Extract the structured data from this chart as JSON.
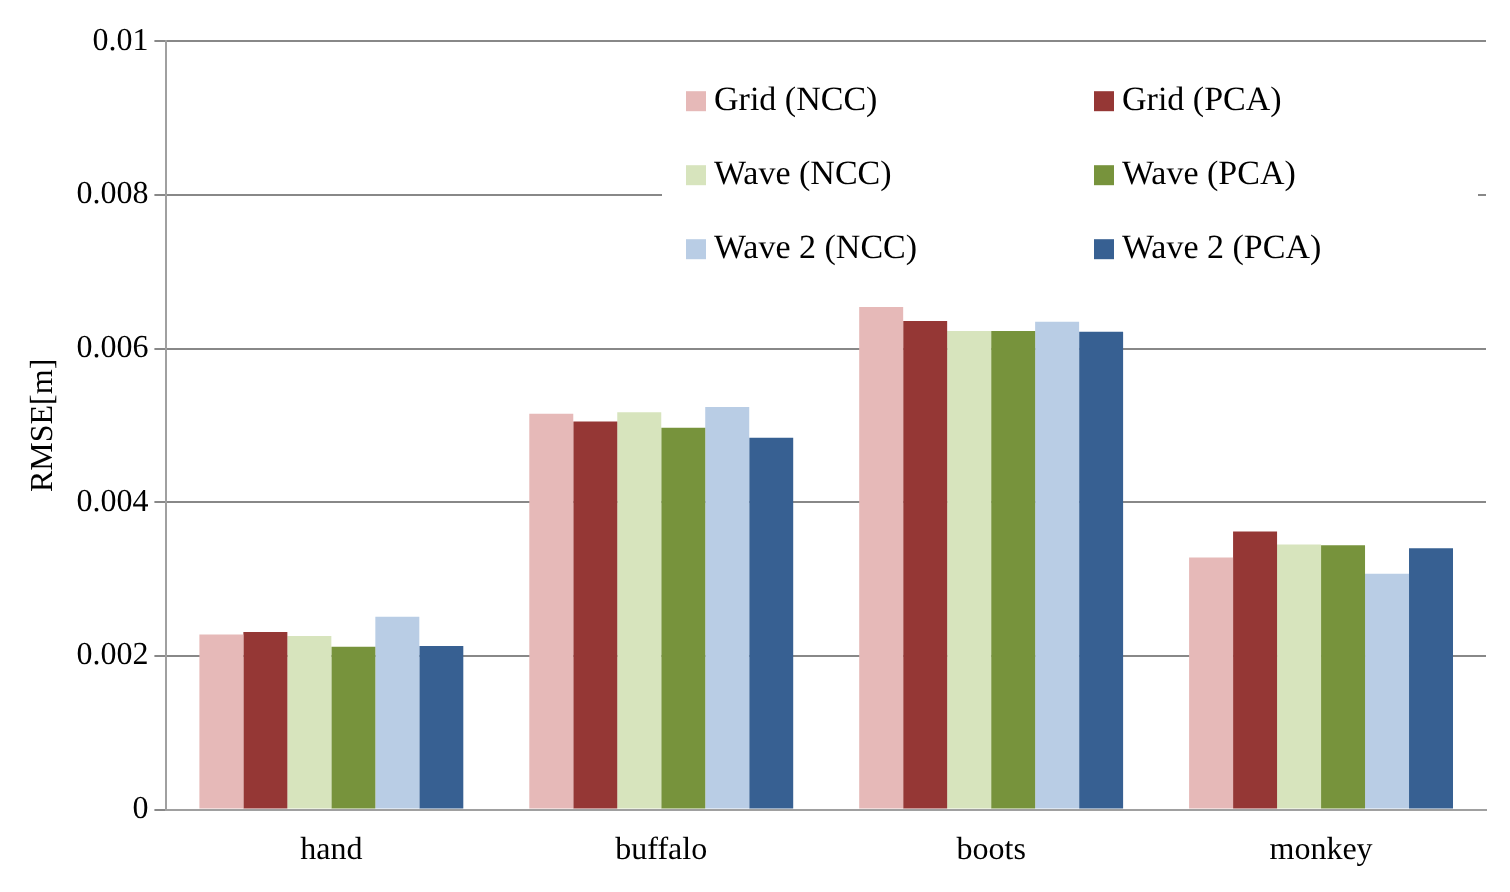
{
  "chart_data": {
    "type": "bar",
    "ylabel": "RMSE[m]",
    "categories": [
      "hand",
      "buffalo",
      "boots",
      "monkey"
    ],
    "series": [
      {
        "name": "Grid (NCC)",
        "color": "#e6b9b8",
        "values": [
          0.00228,
          0.00515,
          0.00654,
          0.00328
        ]
      },
      {
        "name": "Grid (PCA)",
        "color": "#953735",
        "values": [
          0.00231,
          0.00505,
          0.00636,
          0.00362
        ]
      },
      {
        "name": "Wave (NCC)",
        "color": "#d7e4bd",
        "values": [
          0.00226,
          0.00517,
          0.00623,
          0.00345
        ]
      },
      {
        "name": "Wave (PCA)",
        "color": "#77933c",
        "values": [
          0.00212,
          0.00497,
          0.00623,
          0.00344
        ]
      },
      {
        "name": "Wave 2 (NCC)",
        "color": "#b9cde5",
        "values": [
          0.00251,
          0.00524,
          0.00635,
          0.00307
        ]
      },
      {
        "name": "Wave 2 (PCA)",
        "color": "#376092",
        "values": [
          0.00213,
          0.00484,
          0.00622,
          0.0034
        ]
      }
    ],
    "ylim": [
      0,
      0.01
    ],
    "yticks": [
      0,
      0.002,
      0.004,
      0.006,
      0.008,
      0.01
    ],
    "grid": "y",
    "legend": "top right"
  }
}
